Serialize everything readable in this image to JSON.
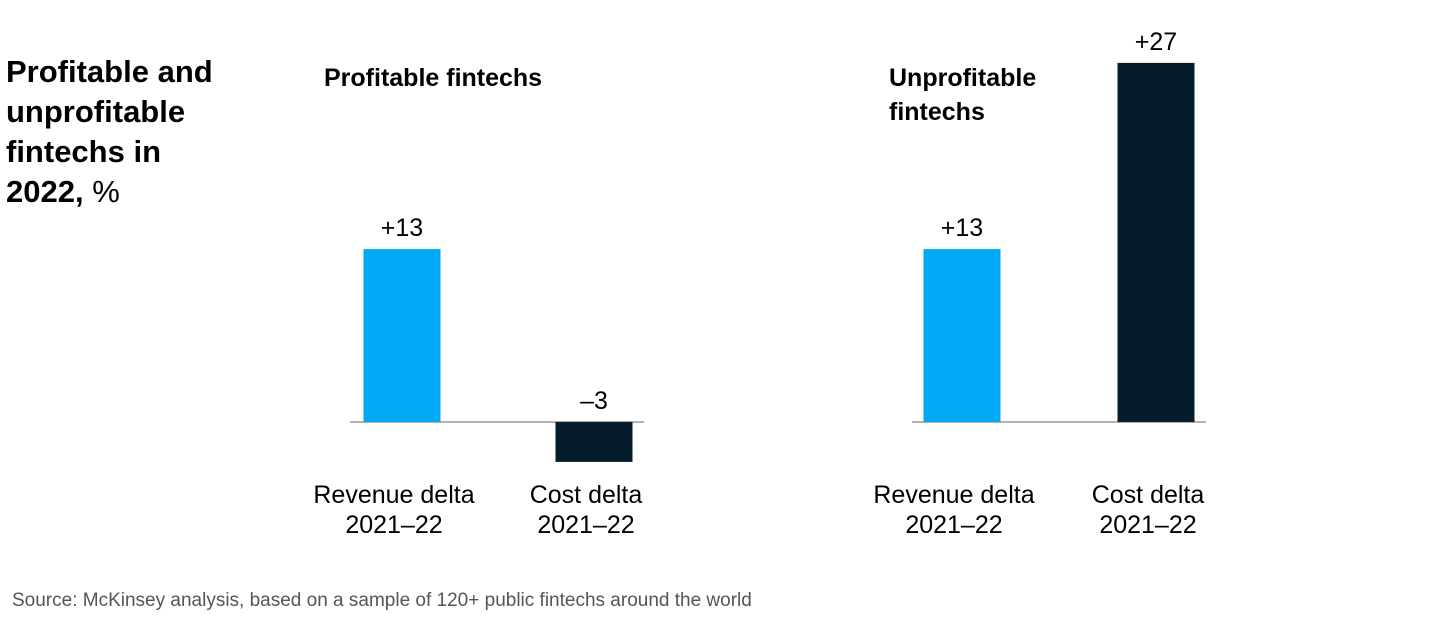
{
  "title": {
    "bold": "Profitable and unprofitable fintechs in 2022,",
    "unit": "%"
  },
  "source": "Source: McKinsey analysis, based on a sample of 120+ public fintechs around the world",
  "colors": {
    "revenue": "#00A9F4",
    "cost": "#051C2C",
    "baseline": "#999999"
  },
  "chart_data": {
    "type": "bar",
    "title": "Profitable and unprofitable fintechs in 2022, %",
    "ylim": [
      -5,
      28
    ],
    "groups": [
      {
        "name": "Profitable fintechs",
        "bars": [
          {
            "category_line1": "Revenue delta",
            "category_line2": "2021–22",
            "value": 13,
            "label": "+13",
            "color_key": "revenue"
          },
          {
            "category_line1": "Cost delta",
            "category_line2": "2021–22",
            "value": -3,
            "label": "–3",
            "color_key": "cost"
          }
        ]
      },
      {
        "name": "Unprofitable fintechs",
        "bars": [
          {
            "category_line1": "Revenue delta",
            "category_line2": "2021–22",
            "value": 13,
            "label": "+13",
            "color_key": "revenue"
          },
          {
            "category_line1": "Cost delta",
            "category_line2": "2021–22",
            "value": 27,
            "label": "+27",
            "color_key": "cost"
          }
        ]
      }
    ]
  }
}
